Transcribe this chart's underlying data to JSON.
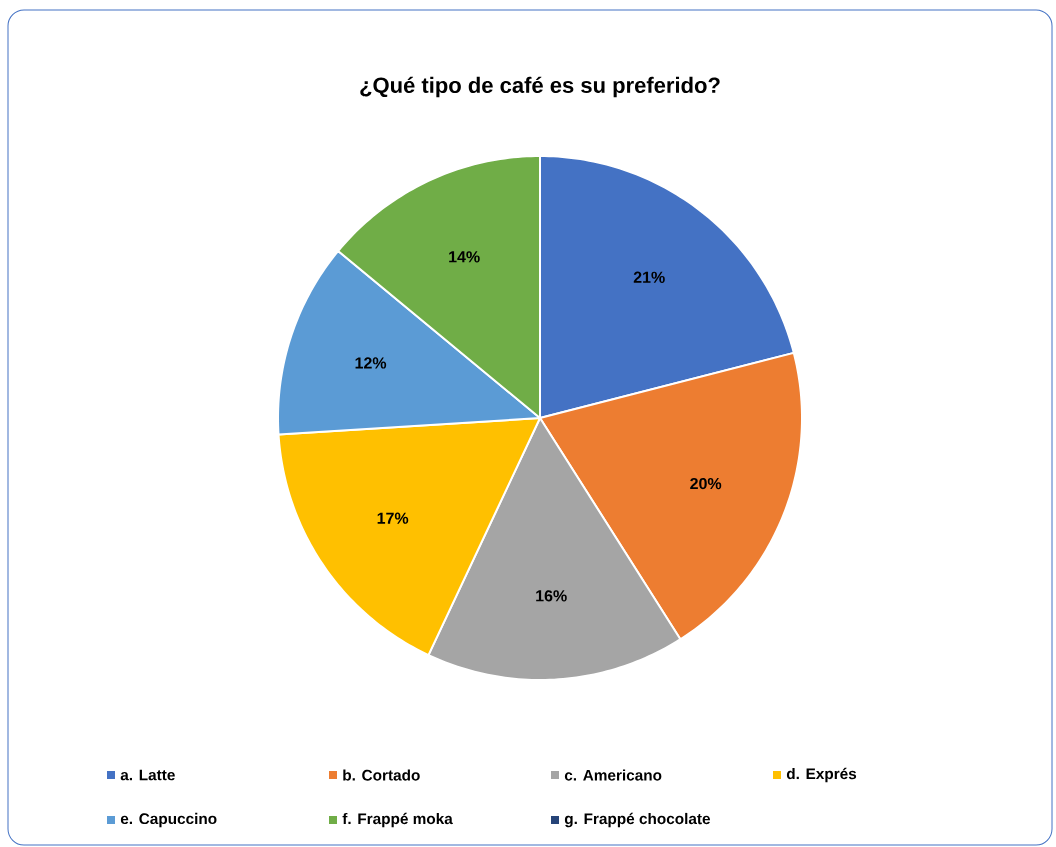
{
  "chart_data": {
    "type": "pie",
    "title": "¿Qué tipo de café es su preferido?",
    "categories": [
      "a. Latte",
      "b. Cortado",
      "c. Americano",
      "d. Exprés",
      "e. Capuccino",
      "f. Frappé moka",
      "g. Frappé chocolate"
    ],
    "values": [
      21,
      20,
      16,
      17,
      12,
      14,
      0
    ],
    "value_labels": [
      "21%",
      "20%",
      "16%",
      "17%",
      "12%",
      "14%",
      null
    ],
    "colors": [
      "#4472c4",
      "#ed7d31",
      "#a5a5a5",
      "#ffc000",
      "#5b9bd5",
      "#70ad47",
      "#264478"
    ],
    "legend": "bottom"
  }
}
